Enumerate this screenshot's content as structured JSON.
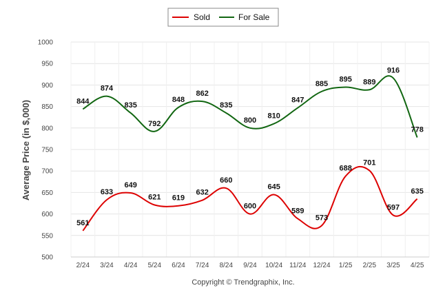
{
  "chart_data": {
    "type": "line",
    "categories": [
      "2/24",
      "3/24",
      "4/24",
      "5/24",
      "6/24",
      "7/24",
      "8/24",
      "9/24",
      "10/24",
      "11/24",
      "12/24",
      "1/25",
      "2/25",
      "3/25",
      "4/25"
    ],
    "series": [
      {
        "name": "Sold",
        "color": "#dd0000",
        "values": [
          561,
          633,
          649,
          621,
          619,
          632,
          660,
          600,
          645,
          589,
          573,
          688,
          701,
          597,
          635
        ]
      },
      {
        "name": "For Sale",
        "color": "#116611",
        "values": [
          844,
          874,
          835,
          792,
          848,
          862,
          835,
          800,
          810,
          847,
          885,
          895,
          889,
          916,
          778
        ]
      }
    ],
    "ylabel": "Average Price (in $,000)",
    "xlabel": "",
    "ylim": [
      500,
      1000
    ],
    "yticks": [
      500,
      550,
      600,
      650,
      700,
      750,
      800,
      850,
      900,
      950,
      1000
    ],
    "grid": true,
    "legend_position": "top-center",
    "credit": "Copyright © Trendgraphix, Inc."
  }
}
